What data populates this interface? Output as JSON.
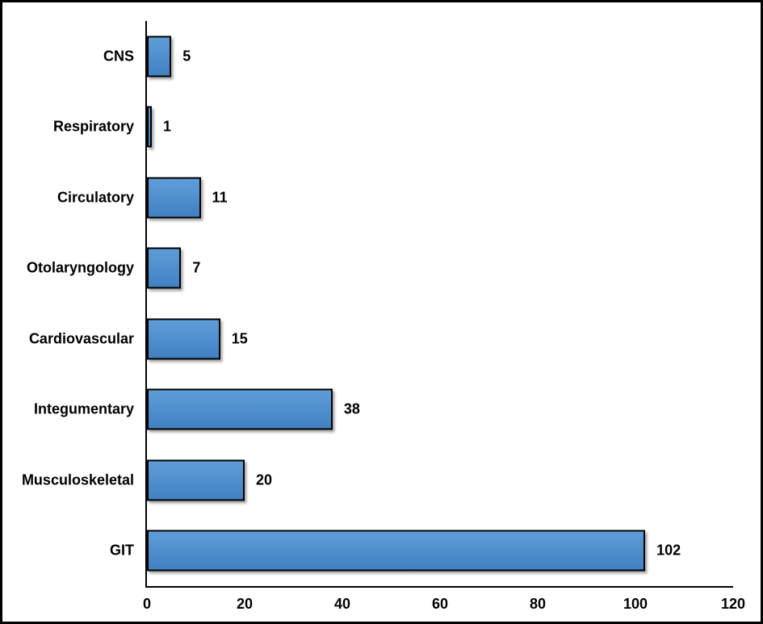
{
  "chart_data": {
    "type": "bar",
    "orientation": "horizontal",
    "title": "",
    "xlabel": "",
    "ylabel": "",
    "categories": [
      "CNS",
      "Respiratory",
      "Circulatory",
      "Otolaryngology",
      "Cardiovascular",
      "Integumentary",
      "Musculoskeletal",
      "GIT"
    ],
    "values": [
      5,
      1,
      11,
      7,
      15,
      38,
      20,
      102
    ],
    "data_labels": [
      "5",
      "1",
      "11",
      "7",
      "15",
      "38",
      "20",
      "102"
    ],
    "xlim": [
      0,
      120
    ],
    "xticks": [
      "0",
      "20",
      "40",
      "60",
      "80",
      "100",
      "120"
    ],
    "xtick_values": [
      0,
      20,
      40,
      60,
      80,
      100,
      120
    ],
    "grid": false,
    "legend": null,
    "colors": {
      "bar_fill_top": "#5f9dd9",
      "bar_fill_bottom": "#4181c2",
      "bar_border": "#000000",
      "axis_line": "#000000",
      "text": "#000000",
      "background": "#ffffff",
      "outer_border": "#000000"
    }
  }
}
